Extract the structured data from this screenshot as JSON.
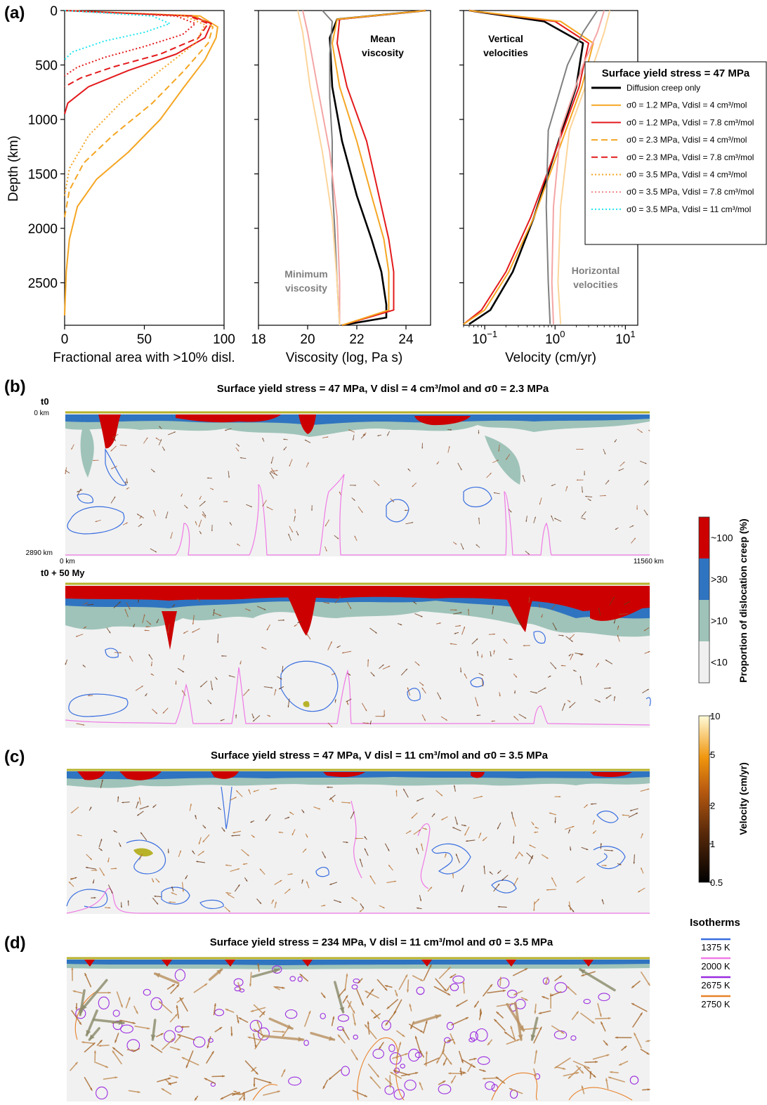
{
  "panel_labels": {
    "a": "(a)",
    "b": "(b)",
    "c": "(c)",
    "d": "(d)"
  },
  "chart_data": [
    {
      "type": "line",
      "panel": "a-left",
      "xlabel": "Fractional area with >10% disl.",
      "ylabel": "Depth (km)",
      "xlim": [
        0,
        100
      ],
      "ylim": [
        2890,
        0
      ],
      "xticks": [
        "0",
        "50",
        "100"
      ],
      "yticks": [
        "0",
        "500",
        "1000",
        "1500",
        "2000",
        "2500"
      ],
      "series": [
        {
          "name": "σ0 = 1.2 MPa, Vdisl = 4 cm3/mol",
          "color": "#f5a623",
          "dash": "solid",
          "x": [
            0,
            85,
            96,
            95,
            88,
            75,
            60,
            40,
            20,
            8,
            3,
            1,
            0
          ],
          "y": [
            0,
            50,
            150,
            250,
            450,
            700,
            1000,
            1300,
            1550,
            1800,
            2100,
            2400,
            2800
          ]
        },
        {
          "name": "σ0 = 1.2 MPa, Vdisl = 7.8 cm3/mol",
          "color": "#e31a1c",
          "dash": "solid",
          "x": [
            0,
            80,
            92,
            88,
            70,
            40,
            15,
            2,
            0
          ],
          "y": [
            0,
            50,
            120,
            250,
            400,
            550,
            700,
            850,
            950
          ]
        },
        {
          "name": "σ0 = 2.3 MPa, Vdisl = 4 cm3/mol",
          "color": "#f5a623",
          "dash": "dashed",
          "x": [
            0,
            82,
            93,
            90,
            75,
            55,
            30,
            12,
            3,
            0
          ],
          "y": [
            0,
            50,
            150,
            300,
            550,
            850,
            1150,
            1400,
            1650,
            1900
          ]
        },
        {
          "name": "σ0 = 2.3 MPa, Vdisl = 7.8 cm3/mol",
          "color": "#e31a1c",
          "dash": "dashed",
          "x": [
            0,
            78,
            90,
            84,
            60,
            30,
            10,
            0
          ],
          "y": [
            0,
            50,
            120,
            250,
            400,
            520,
            620,
            700
          ]
        },
        {
          "name": "σ0 = 3.5 MPa, Vdisl = 4 cm3/mol",
          "color": "#f5a623",
          "dash": "dotted",
          "x": [
            0,
            75,
            88,
            82,
            60,
            35,
            15,
            3,
            0
          ],
          "y": [
            0,
            50,
            130,
            300,
            550,
            850,
            1150,
            1450,
            1700
          ]
        },
        {
          "name": "σ0 = 3.5 MPa, Vdisl = 7.8 cm3/mol",
          "color": "#e31a1c",
          "dash": "dotted",
          "x": [
            0,
            70,
            82,
            74,
            50,
            25,
            8,
            0
          ],
          "y": [
            0,
            50,
            120,
            220,
            330,
            430,
            520,
            600
          ]
        },
        {
          "name": "σ0 = 3.5 MPa, Vdisl = 11 cm3/mol",
          "color": "#22e5ee",
          "dash": "dotted",
          "x": [
            0,
            55,
            66,
            50,
            25,
            5,
            0
          ],
          "y": [
            0,
            50,
            120,
            200,
            280,
            380,
            450
          ]
        }
      ]
    },
    {
      "type": "line",
      "panel": "a-middle",
      "xlabel": "Viscosity (log, Pa s)",
      "xlim": [
        18,
        25
      ],
      "ylim": [
        2890,
        0
      ],
      "xticks": [
        "18",
        "20",
        "22",
        "24"
      ],
      "annotations": [
        "Mean\nviscosity",
        "Minimum\nviscosity"
      ],
      "series": [
        {
          "name": "Diffusion creep only",
          "color": "#000000",
          "dash": "solid",
          "x": [
            24.8,
            21.2,
            20.9,
            21.0,
            21.4,
            22.0,
            22.6,
            23.0,
            23.2,
            23.2,
            21.4
          ],
          "y": [
            0,
            80,
            250,
            700,
            1200,
            1700,
            2100,
            2400,
            2700,
            2820,
            2890
          ]
        },
        {
          "name": "σ0 = 1.2 MPa, Vdisl = 7.8 cm3/mol",
          "color": "#e31a1c",
          "dash": "solid",
          "x": [
            24.8,
            21.3,
            21.2,
            21.6,
            22.4,
            22.9,
            23.3,
            23.5,
            23.5,
            21.4
          ],
          "y": [
            0,
            80,
            300,
            700,
            1200,
            1700,
            2100,
            2400,
            2750,
            2890
          ]
        },
        {
          "name": "σ0 = 1.2 MPa, Vdisl = 4 cm3/mol",
          "color": "#f5a623",
          "dash": "solid",
          "x": [
            24.8,
            21.2,
            21.0,
            21.3,
            22.0,
            22.6,
            23.1,
            23.3,
            23.3,
            21.4
          ],
          "y": [
            0,
            80,
            300,
            700,
            1200,
            1700,
            2100,
            2400,
            2750,
            2890
          ]
        },
        {
          "name": "minimum viscosity (grey)",
          "color": "#7f7f7f",
          "dash": "solid",
          "x": [
            20.6,
            21.0,
            20.9,
            20.9,
            21.0,
            21.0,
            21.1,
            21.2,
            21.3
          ],
          "y": [
            0,
            100,
            400,
            800,
            1200,
            1600,
            2000,
            2500,
            2890
          ]
        },
        {
          "name": "minimum viscosity (light red)",
          "color": "#f4a5a5",
          "dash": "solid",
          "x": [
            19.8,
            20.0,
            20.4,
            20.9,
            21.2,
            21.3,
            21.3
          ],
          "y": [
            0,
            200,
            700,
            1300,
            1900,
            2500,
            2890
          ]
        },
        {
          "name": "minimum viscosity (light orange)",
          "color": "#fcd59b",
          "dash": "solid",
          "x": [
            19.6,
            19.8,
            20.1,
            20.6,
            21.0,
            21.2,
            21.3
          ],
          "y": [
            0,
            200,
            700,
            1300,
            1900,
            2500,
            2890
          ]
        }
      ]
    },
    {
      "type": "line",
      "panel": "a-right",
      "xlabel": "Velocity (cm/yr)",
      "xscale": "log",
      "xlim": [
        0.05,
        15
      ],
      "ylim": [
        2890,
        0
      ],
      "xticks": [
        "10−1",
        "100",
        "101"
      ],
      "annotations": [
        "Vertical\nvelocities",
        "Horizontal\nvelocities"
      ],
      "series": [
        {
          "name": "vertical - Diffusion creep only",
          "color": "#000000",
          "dash": "solid",
          "x": [
            0.06,
            0.7,
            2.5,
            2.0,
            1.0,
            0.5,
            0.25,
            0.12,
            0.06
          ],
          "y": [
            0,
            100,
            300,
            700,
            1300,
            1900,
            2400,
            2750,
            2880
          ]
        },
        {
          "name": "vertical - red",
          "color": "#e31a1c",
          "dash": "solid",
          "x": [
            0.06,
            1.0,
            3.0,
            2.2,
            1.0,
            0.45,
            0.2,
            0.09,
            0.05
          ],
          "y": [
            0,
            100,
            300,
            700,
            1300,
            1900,
            2400,
            2750,
            2880
          ]
        },
        {
          "name": "vertical - orange",
          "color": "#f5a623",
          "dash": "solid",
          "x": [
            0.06,
            1.2,
            3.5,
            2.4,
            1.1,
            0.5,
            0.22,
            0.1,
            0.05
          ],
          "y": [
            0,
            100,
            300,
            700,
            1300,
            1900,
            2400,
            2750,
            2880
          ]
        },
        {
          "name": "horizontal - grey",
          "color": "#7f7f7f",
          "dash": "solid",
          "x": [
            4.0,
            2.5,
            1.5,
            0.8,
            0.75,
            0.8,
            0.85
          ],
          "y": [
            0,
            200,
            500,
            1100,
            1800,
            2500,
            2880
          ]
        },
        {
          "name": "horizontal - light red",
          "color": "#f4a5a5",
          "dash": "solid",
          "x": [
            5.0,
            4.0,
            2.5,
            1.2,
            0.95,
            0.9,
            0.95
          ],
          "y": [
            0,
            200,
            500,
            1100,
            1800,
            2500,
            2880
          ]
        },
        {
          "name": "horizontal - light orange",
          "color": "#fcd59b",
          "dash": "solid",
          "x": [
            6.0,
            5.0,
            3.5,
            1.6,
            1.2,
            1.1,
            1.2
          ],
          "y": [
            0,
            200,
            500,
            1100,
            1800,
            2500,
            2880
          ]
        }
      ]
    }
  ],
  "legend": {
    "title": "Surface yield stress = 47 MPa",
    "entries": [
      {
        "label": "Diffusion creep only",
        "color": "#000000",
        "dash": "solid",
        "width": 3
      },
      {
        "label": "σ0 = 1.2 MPa, Vdisl = 4 cm³/mol",
        "color": "#f5a623",
        "dash": "solid",
        "width": 2
      },
      {
        "label": "σ0 = 1.2 MPa, Vdisl = 7.8 cm³/mol",
        "color": "#e31a1c",
        "dash": "solid",
        "width": 2
      },
      {
        "label": "σ0 = 2.3 MPa, Vdisl = 4 cm³/mol",
        "color": "#f5a623",
        "dash": "dashed",
        "width": 2
      },
      {
        "label": "σ0 = 2.3 MPa, Vdisl = 7.8 cm³/mol",
        "color": "#e31a1c",
        "dash": "dashed",
        "width": 2
      },
      {
        "label": "σ0 = 3.5 MPa, Vdisl = 4 cm³/mol",
        "color": "#f5a623",
        "dash": "dotted",
        "width": 2
      },
      {
        "label": "σ0 = 3.5 MPa, Vdisl = 7.8 cm³/mol",
        "color": "#e31a1c",
        "dash": "dotted",
        "width": 1
      },
      {
        "label": "σ0 = 3.5 MPa, Vdisl = 11 cm³/mol",
        "color": "#22e5ee",
        "dash": "dotted",
        "width": 2
      }
    ]
  },
  "panel_b": {
    "title": "Surface yield stress = 47 MPa, V disl = 4 cm³/mol and σ0 = 2.3 MPa",
    "time_top": "t0",
    "time_bottom": "t0 + 50 My",
    "depth_top": "0 km",
    "depth_bottom": "2890 km",
    "x_left": "0 km",
    "x_right": "11560 km"
  },
  "panel_c": {
    "title": "Surface yield stress  = 47 MPa, V disl = 11 cm³/mol and σ0 = 3.5 MPa"
  },
  "panel_d": {
    "title": "Surface yield stress  = 234 MPa, V disl = 11 cm³/mol and σ0 = 3.5 MPa"
  },
  "colorbar_disl": {
    "label": "Proportion of dislocation creep (%)",
    "levels": [
      "~100",
      ">30",
      ">10",
      "<10"
    ],
    "colors": [
      "#cc0000",
      "#2f74c0",
      "#9fc3b9",
      "#f0f0f0"
    ]
  },
  "colorbar_vel": {
    "label": "Velocity (cm/yr)",
    "ticks": [
      "10",
      "5",
      "2",
      "1",
      "0.5"
    ]
  },
  "isotherms": {
    "title": "Isotherms",
    "items": [
      {
        "label": "1375 K",
        "color": "#3a6fe0"
      },
      {
        "label": "2000 K",
        "color": "#f07ae6"
      },
      {
        "label": "2675 K",
        "color": "#9b2de0"
      },
      {
        "label": "2750 K",
        "color": "#e8822a"
      }
    ]
  }
}
